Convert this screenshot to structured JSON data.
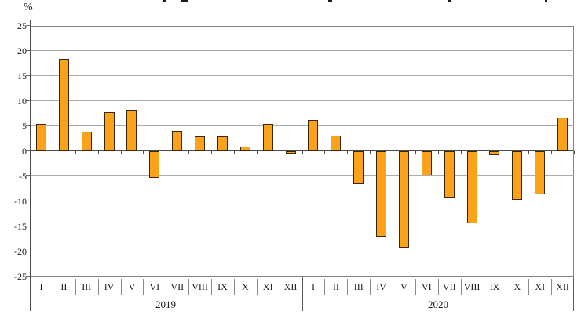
{
  "chart_data": {
    "type": "bar",
    "ylabel": "%",
    "ylim": [
      -25,
      25
    ],
    "ytick_step": 5,
    "yticks": [
      25,
      20,
      15,
      10,
      5,
      0,
      -5,
      -10,
      -15,
      -20,
      -25
    ],
    "groups": [
      {
        "year": "2019",
        "categories": [
          "I",
          "II",
          "III",
          "IV",
          "V",
          "VI",
          "VII",
          "VIII",
          "IX",
          "X",
          "XI",
          "XII"
        ],
        "values": [
          5.4,
          18.4,
          3.9,
          7.8,
          8.1,
          -5.3,
          4.1,
          2.9,
          3.0,
          1.0,
          5.5,
          -0.4
        ]
      },
      {
        "year": "2020",
        "categories": [
          "I",
          "II",
          "III",
          "IV",
          "V",
          "VI",
          "VII",
          "VIII",
          "IX",
          "X",
          "XI",
          "XII"
        ],
        "values": [
          6.2,
          3.1,
          -6.5,
          -17.1,
          -19.2,
          -4.8,
          -9.3,
          -14.3,
          -0.7,
          -9.7,
          -8.6,
          6.8
        ]
      }
    ],
    "legend": [],
    "grid": true,
    "colors": {
      "bar_fill": "#F9A21A",
      "bar_border": "#3A2600",
      "gridline": "#ABABAB",
      "axis": "#4A4A4A"
    }
  }
}
